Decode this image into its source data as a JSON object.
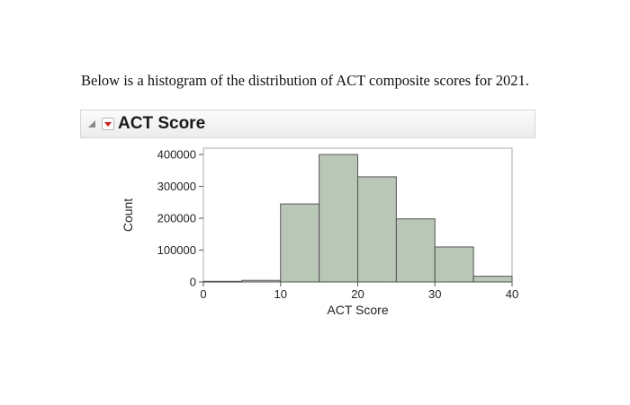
{
  "question_text": "Below is a histogram of the distribution of ACT composite scores for 2021.",
  "outline": {
    "title": "ACT Score"
  },
  "colors": {
    "bar_fill": "#b9c7b6",
    "bar_stroke": "#555555",
    "menu_triangle": "#d42020"
  },
  "chart_data": {
    "type": "histogram",
    "title": "",
    "xlabel": "ACT Score",
    "ylabel": "Count",
    "xlim": [
      0,
      40
    ],
    "ylim": [
      0,
      420000
    ],
    "x_ticks": [
      0,
      10,
      20,
      30,
      40
    ],
    "y_ticks": [
      0,
      100000,
      200000,
      300000,
      400000
    ],
    "x_tick_labels": [
      "0",
      "10",
      "20",
      "30",
      "40"
    ],
    "y_tick_labels": [
      "0",
      "100000",
      "200000",
      "300000",
      "400000"
    ],
    "bins": [
      {
        "start": 0,
        "end": 5,
        "count": 2000
      },
      {
        "start": 5,
        "end": 10,
        "count": 5000
      },
      {
        "start": 10,
        "end": 15,
        "count": 245000
      },
      {
        "start": 15,
        "end": 20,
        "count": 400000
      },
      {
        "start": 20,
        "end": 25,
        "count": 330000
      },
      {
        "start": 25,
        "end": 30,
        "count": 198000
      },
      {
        "start": 30,
        "end": 35,
        "count": 110000
      },
      {
        "start": 35,
        "end": 40,
        "count": 18000
      }
    ],
    "grid": false
  }
}
